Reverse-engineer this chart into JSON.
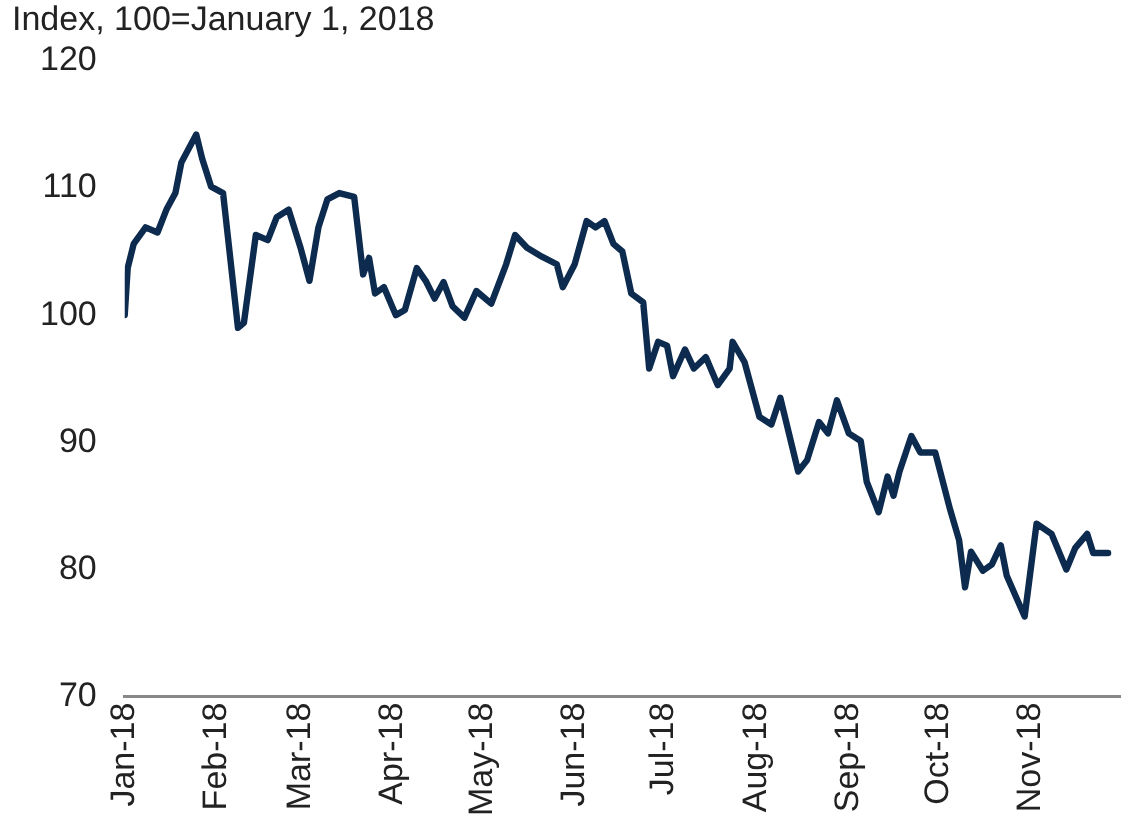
{
  "chart_data": {
    "type": "line",
    "title": "Index, 100=January 1, 2018",
    "x": [
      "2018-01-01",
      "2018-01-02",
      "2018-01-04",
      "2018-01-08",
      "2018-01-12",
      "2018-01-15",
      "2018-01-18",
      "2018-01-20",
      "2018-01-25",
      "2018-01-27",
      "2018-01-30",
      "2018-02-03",
      "2018-02-08",
      "2018-02-10",
      "2018-02-14",
      "2018-02-18",
      "2018-02-21",
      "2018-02-25",
      "2018-03-01",
      "2018-03-04",
      "2018-03-07",
      "2018-03-10",
      "2018-03-14",
      "2018-03-19",
      "2018-03-22",
      "2018-03-24",
      "2018-03-26",
      "2018-03-29",
      "2018-04-02",
      "2018-04-05",
      "2018-04-09",
      "2018-04-12",
      "2018-04-15",
      "2018-04-18",
      "2018-04-21",
      "2018-04-25",
      "2018-04-29",
      "2018-05-04",
      "2018-05-09",
      "2018-05-12",
      "2018-05-16",
      "2018-05-21",
      "2018-05-26",
      "2018-05-28",
      "2018-06-01",
      "2018-06-05",
      "2018-06-08",
      "2018-06-11",
      "2018-06-14",
      "2018-06-17",
      "2018-06-20",
      "2018-06-24",
      "2018-06-26",
      "2018-06-29",
      "2018-07-02",
      "2018-07-04",
      "2018-07-08",
      "2018-07-11",
      "2018-07-15",
      "2018-07-19",
      "2018-07-23",
      "2018-07-24",
      "2018-07-28",
      "2018-08-02",
      "2018-08-06",
      "2018-08-09",
      "2018-08-15",
      "2018-08-18",
      "2018-08-22",
      "2018-08-25",
      "2018-08-28",
      "2018-09-01",
      "2018-09-05",
      "2018-09-07",
      "2018-09-11",
      "2018-09-14",
      "2018-09-16",
      "2018-09-18",
      "2018-09-22",
      "2018-09-25",
      "2018-09-30",
      "2018-10-05",
      "2018-10-08",
      "2018-10-10",
      "2018-10-12",
      "2018-10-16",
      "2018-10-19",
      "2018-10-22",
      "2018-10-24",
      "2018-10-30",
      "2018-11-03",
      "2018-11-08",
      "2018-11-13",
      "2018-11-16",
      "2018-11-20",
      "2018-11-22",
      "2018-11-27"
    ],
    "series": [
      {
        "color": "#0d2b4e",
        "values": [
          100,
          103.7,
          105.6,
          106.9,
          106.5,
          108.3,
          109.6,
          112,
          114.2,
          112.3,
          110.1,
          109.6,
          99,
          99.4,
          106.3,
          105.9,
          107.7,
          108.3,
          105.3,
          102.7,
          106.9,
          109.1,
          109.6,
          109.3,
          103.2,
          104.5,
          101.7,
          102.2,
          100,
          100.4,
          103.7,
          102.7,
          101.3,
          102.6,
          100.7,
          99.8,
          101.9,
          100.9,
          104,
          106.3,
          105.3,
          104.6,
          104,
          102.2,
          104,
          107.4,
          106.9,
          107.4,
          105.6,
          105,
          101.7,
          101,
          95.8,
          97.9,
          97.6,
          95.2,
          97.3,
          95.8,
          96.7,
          94.5,
          95.8,
          97.9,
          96.3,
          92,
          91.4,
          93.5,
          87.7,
          88.6,
          91.6,
          90.7,
          93.3,
          90.7,
          90.1,
          86.9,
          84.5,
          87.3,
          85.8,
          87.7,
          90.5,
          89.2,
          89.2,
          84.7,
          82.3,
          78.6,
          81.4,
          79.9,
          80.4,
          81.9,
          79.5,
          76.3,
          83.6,
          82.8,
          80,
          81.7,
          82.8,
          81.3,
          81.3
        ]
      }
    ],
    "xlim": [
      "2018-01-01",
      "2018-12-01"
    ],
    "xticks": [
      {
        "value": "2018-01-01",
        "label": "Jan-18"
      },
      {
        "value": "2018-02-01",
        "label": "Feb-18"
      },
      {
        "value": "2018-03-01",
        "label": "Mar-18"
      },
      {
        "value": "2018-04-01",
        "label": "Apr-18"
      },
      {
        "value": "2018-05-01",
        "label": "May-18"
      },
      {
        "value": "2018-06-01",
        "label": "Jun-18"
      },
      {
        "value": "2018-07-01",
        "label": "Jul-18"
      },
      {
        "value": "2018-08-01",
        "label": "Aug-18"
      },
      {
        "value": "2018-09-01",
        "label": "Sep-18"
      },
      {
        "value": "2018-10-01",
        "label": "Oct-18"
      },
      {
        "value": "2018-11-01",
        "label": "Nov-18"
      }
    ],
    "ylim": [
      70,
      120
    ],
    "yticks": [
      70,
      80,
      90,
      100,
      110,
      120
    ],
    "grid": false,
    "legend": false,
    "marker": "none",
    "line_style": "solid"
  }
}
